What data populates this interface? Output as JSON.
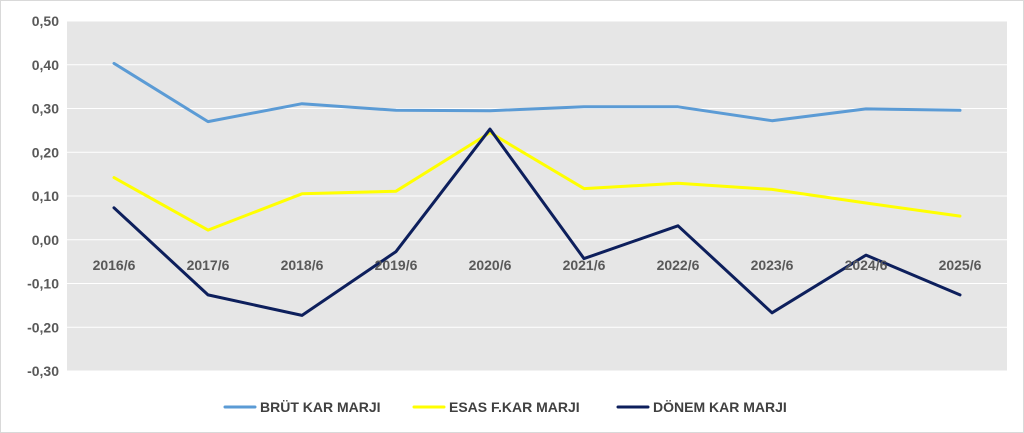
{
  "chart_data": {
    "type": "line",
    "title": "",
    "xlabel": "",
    "ylabel": "",
    "categories": [
      "2016/6",
      "2017/6",
      "2018/6",
      "2019/6",
      "2020/6",
      "2021/6",
      "2022/6",
      "2023/6",
      "2024/6",
      "2025/6"
    ],
    "ylim": [
      -0.3,
      0.5
    ],
    "yticks": [
      "0,50",
      "0,40",
      "0,30",
      "0,20",
      "0,10",
      "0,00",
      "-0,10",
      "-0,20",
      "-0,30"
    ],
    "ytick_values": [
      0.5,
      0.4,
      0.3,
      0.2,
      0.1,
      0.0,
      -0.1,
      -0.2,
      -0.3
    ],
    "grid": true,
    "plot_background": "#e6e6e6",
    "legend_position": "bottom",
    "series": [
      {
        "name": "BRÜT KAR MARJI",
        "color": "#5b9bd5",
        "values": [
          0.403,
          0.27,
          0.311,
          0.296,
          0.295,
          0.304,
          0.304,
          0.272,
          0.299,
          0.296
        ]
      },
      {
        "name": "ESAS F.KAR MARJI",
        "color": "#ffff00",
        "values": [
          0.142,
          0.022,
          0.105,
          0.111,
          0.245,
          0.117,
          0.129,
          0.115,
          0.084,
          0.054
        ]
      },
      {
        "name": "DÖNEM KAR MARJI",
        "color": "#0d1f5c",
        "values": [
          0.073,
          -0.126,
          -0.173,
          -0.027,
          0.253,
          -0.043,
          0.032,
          -0.167,
          -0.035,
          -0.126
        ]
      }
    ]
  }
}
